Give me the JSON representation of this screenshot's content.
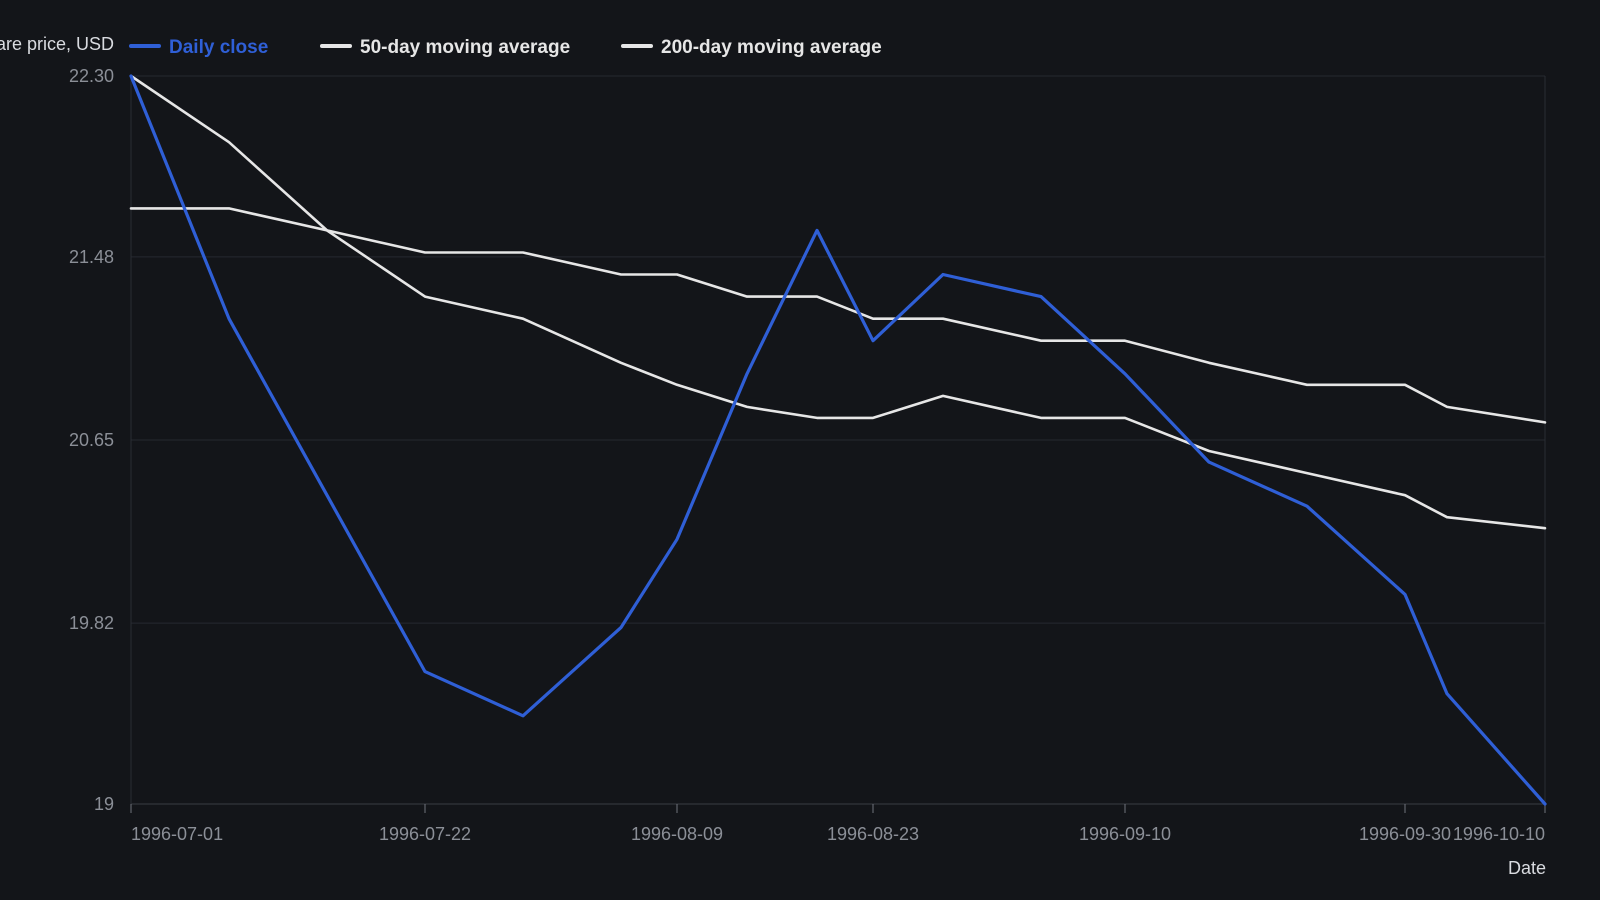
{
  "chart_data": {
    "type": "line",
    "title": "",
    "xlabel": "Date",
    "ylabel": "Share price, USD",
    "x_tick_labels": [
      "1996-07-01",
      "1996-07-22",
      "1996-08-09",
      "1996-08-23",
      "1996-09-10",
      "1996-09-30",
      "1996-10-10"
    ],
    "y_tick_labels": [
      "22.30",
      "21.48",
      "20.65",
      "19.82",
      "19"
    ],
    "ylim": [
      19,
      22.3
    ],
    "grid": true,
    "legend_position": "top-left",
    "x": [
      "1996-07-01",
      "1996-07-08",
      "1996-07-15",
      "1996-07-22",
      "1996-07-29",
      "1996-08-05",
      "1996-08-09",
      "1996-08-14",
      "1996-08-19",
      "1996-08-23",
      "1996-08-28",
      "1996-09-04",
      "1996-09-10",
      "1996-09-16",
      "1996-09-23",
      "1996-09-30",
      "1996-10-03",
      "1996-10-10"
    ],
    "series": [
      {
        "name": "Daily close",
        "color": "#2f5fd6",
        "values": [
          22.3,
          21.2,
          20.4,
          19.6,
          19.4,
          19.8,
          20.2,
          20.95,
          21.6,
          21.1,
          21.4,
          21.3,
          20.95,
          20.55,
          20.35,
          19.95,
          19.5,
          19.0
        ]
      },
      {
        "name": "50-day moving average",
        "color": "#e6e6e6",
        "values": [
          22.3,
          22.0,
          21.6,
          21.3,
          21.2,
          21.0,
          20.9,
          20.8,
          20.75,
          20.75,
          20.85,
          20.75,
          20.75,
          20.6,
          20.5,
          20.4,
          20.3,
          20.25
        ]
      },
      {
        "name": "200-day moving average",
        "color": "#e6e6e6",
        "values": [
          21.7,
          21.7,
          21.6,
          21.5,
          21.5,
          21.4,
          21.4,
          21.3,
          21.3,
          21.2,
          21.2,
          21.1,
          21.1,
          21.0,
          20.9,
          20.9,
          20.8,
          20.73
        ]
      }
    ]
  }
}
